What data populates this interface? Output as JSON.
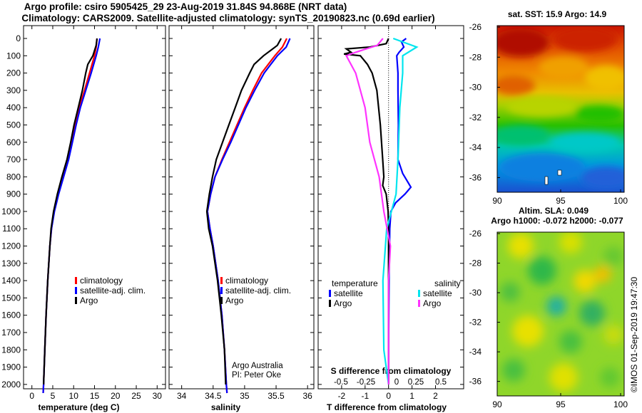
{
  "header": {
    "title_line1": "Argo profile: csiro 5905425_29 23-Aug-2019 31.84S 94.868E (NRT data)",
    "title_line2": "Climatology: CARS2009. Satellite-adjusted climatology: synTS_20190823.nc (0.69d earlier)"
  },
  "colors": {
    "climatology": "#ff0000",
    "satellite": "#0000ff",
    "argo": "#000000",
    "sat_salinity": "#00e5ee",
    "argo_salinity": "#ff33ff"
  },
  "chart_data": [
    {
      "type": "line",
      "id": "temperature",
      "xlabel": "temperature (deg C)",
      "xlim": [
        -2,
        32
      ],
      "xticks": [
        0,
        5,
        10,
        15,
        20,
        25,
        30
      ],
      "ylim": [
        2050,
        0
      ],
      "yticks": [
        0,
        100,
        200,
        300,
        400,
        500,
        600,
        700,
        800,
        900,
        1000,
        1100,
        1200,
        1300,
        1400,
        1500,
        1600,
        1700,
        1800,
        1900,
        2000
      ],
      "legend": [
        "climatology",
        "satellite-adj. clim.",
        "Argo"
      ],
      "series": [
        {
          "name": "climatology",
          "color": "#ff0000",
          "depth": [
            0,
            50,
            100,
            200,
            300,
            400,
            500,
            600,
            700,
            800,
            900,
            1000,
            1100,
            1200,
            1400,
            1600,
            1800,
            2000,
            2050
          ],
          "values": [
            15.6,
            15.4,
            15.0,
            13.8,
            12.6,
            11.3,
            10.4,
            9.5,
            8.6,
            7.4,
            6.3,
            5.3,
            4.7,
            4.3,
            3.8,
            3.4,
            3.1,
            2.8,
            2.7
          ]
        },
        {
          "name": "satellite-adj. clim.",
          "color": "#0000ff",
          "depth": [
            0,
            50,
            100,
            200,
            300,
            400,
            500,
            600,
            700,
            800,
            900,
            1000,
            1100,
            1200,
            1400,
            1600,
            1800,
            2000,
            2050
          ],
          "values": [
            16.3,
            15.9,
            15.4,
            14.2,
            12.9,
            11.6,
            10.6,
            9.7,
            8.8,
            7.6,
            6.4,
            5.4,
            4.7,
            4.3,
            3.8,
            3.4,
            3.1,
            2.8,
            2.7
          ]
        },
        {
          "name": "Argo",
          "color": "#000000",
          "depth": [
            0,
            40,
            100,
            150,
            200,
            300,
            400,
            500,
            600,
            700,
            800,
            900,
            1000,
            1100,
            1200,
            1400,
            1600,
            1800,
            2000
          ],
          "values": [
            15.6,
            15.4,
            14.6,
            13.4,
            12.9,
            12.1,
            11.1,
            10.1,
            9.3,
            8.4,
            7.2,
            6.1,
            5.2,
            4.6,
            4.3,
            3.8,
            3.4,
            3.1,
            2.8
          ]
        }
      ]
    },
    {
      "type": "line",
      "id": "salinity",
      "xlabel": "salinity",
      "xlim": [
        33.8,
        36.1
      ],
      "xticks": [
        34,
        34.5,
        35,
        35.5,
        36
      ],
      "ylim": [
        2050,
        0
      ],
      "legend": [
        "climatology",
        "satellite-adj. clim.",
        "Argo"
      ],
      "annotation": [
        "Argo Australia",
        "PI: Peter Oke"
      ],
      "series": [
        {
          "name": "climatology",
          "color": "#ff0000",
          "depth": [
            0,
            50,
            100,
            200,
            300,
            400,
            500,
            600,
            700,
            800,
            900,
            1000,
            1100,
            1200,
            1400,
            1600,
            1800,
            2000,
            2050
          ],
          "values": [
            35.67,
            35.6,
            35.48,
            35.27,
            35.13,
            35.0,
            34.88,
            34.76,
            34.64,
            34.53,
            34.46,
            34.41,
            34.45,
            34.5,
            34.58,
            34.64,
            34.68,
            34.71,
            34.72
          ]
        },
        {
          "name": "satellite-adj. clim.",
          "color": "#0000ff",
          "depth": [
            0,
            50,
            100,
            200,
            300,
            400,
            500,
            600,
            700,
            800,
            900,
            1000,
            1100,
            1200,
            1400,
            1600,
            1800,
            2000,
            2050
          ],
          "values": [
            35.72,
            35.66,
            35.52,
            35.31,
            35.16,
            35.02,
            34.9,
            34.78,
            34.65,
            34.53,
            34.46,
            34.41,
            34.45,
            34.5,
            34.58,
            34.64,
            34.68,
            34.71,
            34.72
          ]
        },
        {
          "name": "Argo",
          "color": "#000000",
          "depth": [
            0,
            40,
            100,
            150,
            200,
            300,
            400,
            500,
            600,
            700,
            800,
            900,
            1000,
            1100,
            1200,
            1400,
            1600,
            1800,
            2000
          ],
          "values": [
            35.58,
            35.52,
            35.3,
            35.15,
            35.08,
            34.95,
            34.85,
            34.75,
            34.65,
            34.55,
            34.49,
            34.44,
            34.4,
            34.43,
            34.49,
            34.57,
            34.63,
            34.68,
            34.7
          ]
        }
      ]
    },
    {
      "type": "line",
      "id": "difference",
      "xlabel": "T difference from climatology",
      "xlabel_top": "S difference from climatology",
      "xlim": [
        -3,
        3.2
      ],
      "xticks": [
        -2,
        -1,
        0,
        1,
        2
      ],
      "s_ticks": [
        "-0.5",
        "-0.25",
        "0",
        "0.25",
        "0.5"
      ],
      "ylim": [
        2050,
        0
      ],
      "legend_temperature_title": "temperature",
      "legend_salinity_title": "salinity",
      "legend": [
        "satellite",
        "Argo",
        "satellite",
        "Argo"
      ],
      "series": [
        {
          "name": "T satellite",
          "color": "#0000ff",
          "depth": [
            0,
            20,
            50,
            80,
            100,
            200,
            300,
            500,
            700,
            780,
            860,
            900,
            950,
            1000,
            1100,
            1400,
            1800,
            2000
          ],
          "values": [
            0.75,
            0.55,
            0.65,
            0.45,
            0.35,
            0.4,
            0.4,
            0.42,
            0.4,
            0.6,
            0.95,
            0.7,
            0.3,
            0.1,
            0.05,
            0.02,
            0.0,
            0.0
          ]
        },
        {
          "name": "T Argo",
          "color": "#000000",
          "depth": [
            0,
            30,
            50,
            60,
            80,
            90,
            100,
            150,
            200,
            300,
            500,
            700,
            800,
            850,
            900,
            1000,
            1100,
            1400,
            1800,
            2000
          ],
          "values": [
            0.0,
            -0.1,
            -0.8,
            -1.8,
            -1.6,
            -1.9,
            -1.2,
            -0.9,
            -0.7,
            -0.5,
            -0.35,
            -0.25,
            -0.2,
            -0.25,
            -0.1,
            -0.02,
            0.0,
            0.0,
            0.0,
            0.0
          ]
        },
        {
          "name": "S satellite",
          "color": "#00e5ee",
          "depth": [
            0,
            50,
            100,
            200,
            400,
            700,
            900,
            1000,
            1100,
            1400,
            1800,
            2000
          ],
          "values": [
            0.05,
            0.3,
            0.15,
            0.15,
            0.12,
            0.1,
            0.08,
            0.03,
            -0.02,
            -0.06,
            -0.05,
            0.0
          ]
        },
        {
          "name": "S Argo",
          "color": "#ff33ff",
          "depth": [
            0,
            40,
            80,
            100,
            200,
            400,
            600,
            800,
            1000,
            1200,
            1400,
            1800,
            2000
          ],
          "values": [
            -0.06,
            -0.12,
            -0.35,
            -0.45,
            -0.35,
            -0.25,
            -0.2,
            -0.1,
            -0.05,
            0.02,
            0.0,
            0.0,
            0.0
          ]
        }
      ]
    },
    {
      "type": "heatmap",
      "id": "sst-map",
      "title": "sat. SST: 15.9 Argo: 14.9",
      "xticks": [
        "90",
        "95",
        "100"
      ],
      "yticks": [
        "-26",
        "-28",
        "-30",
        "-32",
        "-34",
        "-36"
      ]
    },
    {
      "type": "heatmap",
      "id": "sla-map",
      "title_line1": "Altim. SLA: 0.049",
      "title_line2": "Argo h1000: -0.072 h2000: -0.077",
      "xticks": [
        "90",
        "95",
        "100"
      ],
      "yticks": [
        "-26",
        "-28",
        "-30",
        "-32",
        "-34",
        "-36"
      ]
    }
  ],
  "side_stamp": "©IMOS 01-Sep-2019 19:47:30"
}
